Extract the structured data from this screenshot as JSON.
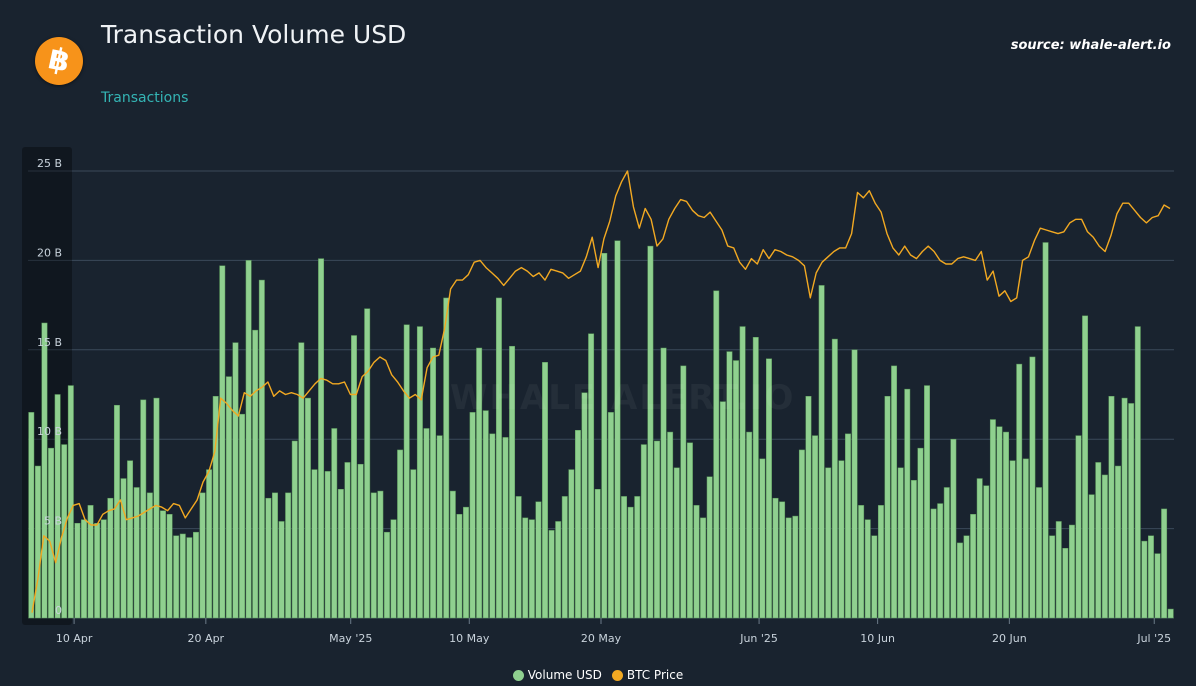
{
  "header": {
    "logo_glyph": "฿",
    "title": "Transaction Volume USD",
    "subtitle": "Transactions",
    "source": "source: whale-alert.io"
  },
  "watermark": "WHALE ALERT.IO",
  "colors": {
    "background": "#19232f",
    "bar": "#8fd08f",
    "bar_edge": "#5c9a5c",
    "line": "#f2a922",
    "grid": "#3a4a5a",
    "subtitle": "#34b4b4",
    "logo": "#f7931a"
  },
  "legend": {
    "volume_label": "Volume USD",
    "price_label": "BTC Price"
  },
  "chart_data": {
    "type": "bar",
    "title": "Transaction Volume USD",
    "grid": true,
    "legend_position": "bottom-center",
    "y_ticks": [
      "0",
      "5 B",
      "10 B",
      "15 B",
      "20 B",
      "25 B"
    ],
    "ylim": [
      0,
      25
    ],
    "y_unit": "B",
    "x_ticks": [
      {
        "label": "10 Apr",
        "index": 3
      },
      {
        "label": "20 Apr",
        "index": 13
      },
      {
        "label": "May '25",
        "index": 24
      },
      {
        "label": "10 May",
        "index": 33
      },
      {
        "label": "20 May",
        "index": 43
      },
      {
        "label": "Jun '25",
        "index": 55
      },
      {
        "label": "10 Jun",
        "index": 64
      },
      {
        "label": "20 Jun",
        "index": 74
      },
      {
        "label": "Jul '25",
        "index": 85
      }
    ],
    "series": [
      {
        "name": "Volume USD",
        "type": "bar",
        "values": [
          11.5,
          8.5,
          16.5,
          9.5,
          12.5,
          9.7,
          13.0,
          5.3,
          5.5,
          6.3,
          5.3,
          5.5,
          6.7,
          11.9,
          7.8,
          8.8,
          7.3,
          12.2,
          7.0,
          12.3,
          6.0,
          5.8,
          4.6,
          4.7,
          4.5,
          4.8,
          7.0,
          8.3,
          12.4,
          19.7,
          13.5,
          15.4,
          11.4,
          20.0,
          16.1,
          18.9,
          6.7,
          7.0,
          5.4,
          7.0,
          9.9,
          15.4,
          12.3,
          8.3,
          20.1,
          8.2,
          10.6,
          7.2,
          8.7,
          15.8,
          8.6,
          17.3,
          7.0,
          7.1,
          4.8,
          5.5,
          9.4,
          16.4,
          8.3,
          16.3,
          10.6,
          15.1,
          10.2,
          17.9,
          7.1,
          5.8,
          6.2,
          11.5,
          15.1,
          11.6,
          10.3,
          17.9,
          10.1,
          15.2,
          6.8,
          5.6,
          5.5,
          6.5,
          14.3,
          4.9,
          5.4,
          6.8,
          8.3,
          10.5,
          12.6,
          15.9,
          7.2,
          20.4,
          11.5,
          21.1,
          6.8,
          6.2,
          6.8,
          9.7,
          20.8,
          9.9,
          15.1,
          10.4,
          8.4,
          14.1,
          9.8,
          6.3,
          5.6,
          7.9,
          18.3,
          12.1,
          14.9,
          14.4,
          16.3,
          10.4,
          15.7,
          8.9,
          14.5,
          6.7,
          6.5,
          5.6,
          5.7,
          9.4,
          12.4,
          10.2,
          18.6,
          8.4,
          15.6,
          8.8,
          10.3,
          15.0,
          6.3,
          5.5,
          4.6,
          6.3,
          12.4,
          14.1,
          8.4,
          12.8,
          7.7,
          9.5,
          13.0,
          6.1,
          6.4,
          7.3,
          10.0,
          4.2,
          4.6,
          5.8,
          7.8,
          7.4,
          11.1,
          10.7,
          10.4,
          8.8,
          14.2,
          8.9,
          14.6,
          7.3,
          21.0,
          4.6,
          5.4,
          3.9,
          5.2,
          10.2,
          16.9,
          6.9,
          8.7,
          8.0,
          12.4,
          8.5,
          12.3,
          12.0,
          16.3,
          4.3,
          4.6,
          3.6,
          6.1,
          0.5
        ]
      },
      {
        "name": "BTC Price",
        "type": "line",
        "values": [
          0.3,
          2.2,
          4.6,
          4.3,
          3.1,
          4.5,
          5.6,
          6.3,
          6.4,
          5.5,
          5.2,
          5.2,
          5.8,
          6.0,
          6.1,
          6.6,
          5.5,
          5.6,
          5.7,
          5.9,
          6.1,
          6.3,
          6.2,
          6.0,
          6.4,
          6.3,
          5.6,
          6.1,
          6.6,
          7.6,
          8.2,
          9.3,
          12.3,
          12.0,
          11.6,
          11.3,
          12.6,
          12.4,
          12.7,
          12.9,
          13.2,
          12.4,
          12.7,
          12.5,
          12.6,
          12.5,
          12.3,
          12.7,
          13.1,
          13.4,
          13.3,
          13.1,
          13.1,
          13.2,
          12.5,
          12.5,
          13.5,
          13.8,
          14.3,
          14.6,
          14.4,
          13.6,
          13.2,
          12.7,
          12.3,
          12.5,
          12.2,
          14.0,
          14.6,
          14.7,
          16.2,
          18.4,
          18.9,
          18.9,
          19.2,
          19.9,
          20.0,
          19.6,
          19.3,
          19.0,
          18.6,
          19.0,
          19.4,
          19.6,
          19.4,
          19.1,
          19.3,
          18.9,
          19.5,
          19.4,
          19.3,
          19.0,
          19.2,
          19.4,
          20.2,
          21.3,
          19.6,
          21.2,
          22.2,
          23.6,
          24.4,
          25.0,
          23.0,
          21.8,
          22.9,
          22.3,
          20.8,
          21.2,
          22.3,
          22.9,
          23.4,
          23.3,
          22.8,
          22.5,
          22.4,
          22.7,
          22.2,
          21.7,
          20.8,
          20.7,
          19.9,
          19.5,
          20.1,
          19.8,
          20.6,
          20.1,
          20.6,
          20.5,
          20.3,
          20.2,
          20.0,
          19.7,
          17.9,
          19.3,
          19.9,
          20.2,
          20.5,
          20.7,
          20.7,
          21.5,
          23.8,
          23.5,
          23.9,
          23.2,
          22.7,
          21.5,
          20.7,
          20.3,
          20.8,
          20.3,
          20.1,
          20.5,
          20.8,
          20.5,
          20.0,
          19.8,
          19.8,
          20.1,
          20.2,
          20.1,
          20.0,
          20.5,
          18.9,
          19.4,
          18.0,
          18.3,
          17.7,
          17.9,
          20.0,
          20.2,
          21.1,
          21.8,
          21.7,
          21.6,
          21.5,
          21.6,
          22.1,
          22.3,
          22.3,
          21.6,
          21.3,
          20.8,
          20.5,
          21.4,
          22.6,
          23.2,
          23.2,
          22.8,
          22.4,
          22.1,
          22.4,
          22.5,
          23.1,
          22.9
        ]
      }
    ]
  }
}
